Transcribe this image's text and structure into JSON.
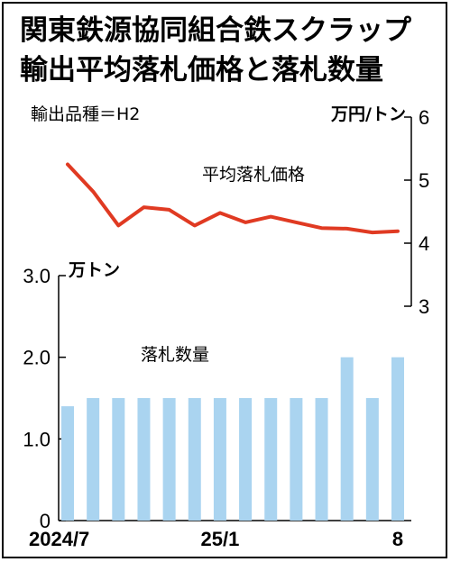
{
  "title_line1": "関東鉄源協同組合鉄スクラップ",
  "title_line2": "輸出平均落札価格と落札数量",
  "note": "輸出品種＝H2",
  "colors": {
    "price_line": "#e03a22",
    "volume_bar": "#aad4f0",
    "axis": "#000000"
  },
  "chart_data": [
    {
      "type": "line",
      "series": [
        {
          "name": "平均落札価格",
          "values": [
            5.25,
            4.82,
            4.28,
            4.57,
            4.53,
            4.28,
            4.48,
            4.33,
            4.42,
            4.33,
            4.24,
            4.23,
            4.17,
            4.19
          ]
        }
      ],
      "y_unit": "万円/トン",
      "ylim": [
        3,
        6
      ],
      "yticks": [
        "3",
        "4",
        "5",
        "6"
      ],
      "y_axis_side": "right"
    },
    {
      "type": "bar",
      "series": [
        {
          "name": "落札数量",
          "values": [
            1.4,
            1.5,
            1.5,
            1.5,
            1.5,
            1.5,
            1.5,
            1.5,
            1.5,
            1.5,
            1.5,
            2.0,
            1.5,
            2.0
          ]
        }
      ],
      "y_unit": "万トン",
      "ylim": [
        0,
        3.0
      ],
      "yticks": [
        "0",
        "1.0",
        "2.0",
        "3.0"
      ],
      "y_axis_side": "left"
    }
  ],
  "x_tick_labels": [
    {
      "index": 0,
      "label": "2024/7"
    },
    {
      "index": 6,
      "label": "25/1"
    },
    {
      "index": 13,
      "label": "8"
    }
  ]
}
